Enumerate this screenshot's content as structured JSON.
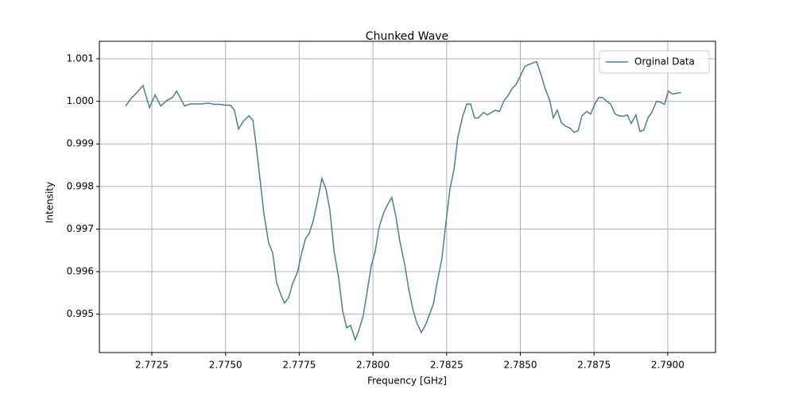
{
  "chart_data": {
    "type": "line",
    "title": "Chunked Wave",
    "x_label": "Frequency [GHz]",
    "y_label": "Intensity",
    "xlim": [
      2.77072,
      2.79162
    ],
    "ylim": [
      0.9941,
      1.00141
    ],
    "xticks": [
      2.7725,
      {
        "value": 2.775,
        "label": "2.7750"
      },
      2.7775,
      {
        "value": 2.78,
        "label": "2.7800"
      },
      2.7825,
      {
        "value": 2.785,
        "label": "2.7850"
      },
      2.7875,
      {
        "value": 2.79,
        "label": "2.7900"
      }
    ],
    "yticks": [
      0.995,
      0.996,
      0.997,
      0.998,
      0.999,
      {
        "value": 1,
        "label": "1.000"
      },
      1.001
    ],
    "grid": true,
    "legend": "upper right",
    "x": [
      2.77161,
      2.7718,
      2.77201,
      2.7722,
      2.77242,
      2.77261,
      2.7728,
      2.77301,
      2.7732,
      2.77334,
      2.77361,
      2.77382,
      2.77401,
      2.7742,
      2.77441,
      2.7746,
      2.77482,
      2.77501,
      2.77517,
      2.7753,
      2.77544,
      2.7756,
      2.77579,
      2.77593,
      2.77603,
      2.77617,
      2.7763,
      2.77646,
      2.7766,
      2.77673,
      2.77687,
      2.777,
      2.77714,
      2.77727,
      2.77744,
      2.77757,
      2.77771,
      2.77784,
      2.77797,
      2.77811,
      2.77827,
      2.77841,
      2.77854,
      2.77868,
      2.77884,
      2.77897,
      2.77911,
      2.77924,
      2.7794,
      2.77954,
      2.77967,
      2.77981,
      2.77994,
      2.78008,
      2.78021,
      2.78038,
      2.78051,
      2.78064,
      2.78078,
      2.78091,
      2.78108,
      2.78121,
      2.78135,
      2.78148,
      2.78164,
      2.78178,
      2.78191,
      2.78205,
      2.78218,
      2.78234,
      2.78248,
      2.78261,
      2.78275,
      2.78288,
      2.78305,
      2.78318,
      2.78331,
      2.78345,
      2.78358,
      2.78375,
      2.78388,
      2.78402,
      2.78415,
      2.78429,
      2.78445,
      2.78458,
      2.78472,
      2.78485,
      2.78499,
      2.78515,
      2.78528,
      2.78542,
      2.78555,
      2.78569,
      2.78585,
      2.78599,
      2.78612,
      2.78625,
      2.78639,
      2.78652,
      2.78669,
      2.78682,
      2.78696,
      2.78709,
      2.78725,
      2.78739,
      2.78752,
      2.78766,
      2.78779,
      2.78793,
      2.78806,
      2.78822,
      2.78836,
      2.78849,
      2.78863,
      2.78876,
      2.78892,
      2.78906,
      2.78919,
      2.78933,
      2.78946,
      2.78962,
      2.78975,
      2.78989,
      2.79002,
      2.79016,
      2.79032,
      2.79045
    ],
    "series": [
      {
        "name": "Orginal Data",
        "color": "#4d7f96",
        "values": [
          0.99989,
          1.00007,
          1.00022,
          1.00037,
          0.99985,
          1.00015,
          0.99989,
          1.00002,
          1.00009,
          1.00024,
          0.99989,
          0.99994,
          0.99994,
          0.99994,
          0.99996,
          0.99993,
          0.99993,
          0.99991,
          0.99991,
          0.99979,
          0.99935,
          0.99953,
          0.99966,
          0.99955,
          0.99901,
          0.99817,
          0.99737,
          0.99668,
          0.99644,
          0.99575,
          0.99547,
          0.99526,
          0.99539,
          0.99571,
          0.99599,
          0.9964,
          0.99677,
          0.9969,
          0.99718,
          0.99763,
          0.99819,
          0.99793,
          0.99744,
          0.99649,
          0.99584,
          0.99509,
          0.99468,
          0.99474,
          0.9944,
          0.99466,
          0.99496,
          0.99556,
          0.99612,
          0.99649,
          0.99705,
          0.99741,
          0.99759,
          0.99774,
          0.99729,
          0.99672,
          0.99616,
          0.9956,
          0.99513,
          0.99481,
          0.99457,
          0.99474,
          0.99498,
          0.99524,
          0.99575,
          0.99631,
          0.99718,
          0.99793,
          0.9984,
          0.99916,
          0.99966,
          0.99993,
          0.99994,
          0.99961,
          0.99961,
          0.99974,
          0.99968,
          0.99974,
          0.99979,
          0.99976,
          1.00002,
          1.00013,
          1.0003,
          1.00039,
          1.00058,
          1.00082,
          1.00086,
          1.0009,
          1.00093,
          1.00065,
          1.00028,
          1.00004,
          0.99961,
          0.99979,
          0.9995,
          0.99942,
          0.99937,
          0.99927,
          0.99931,
          0.99966,
          0.99976,
          0.9997,
          0.99993,
          1.00009,
          1.00009,
          1.0,
          0.99994,
          0.9997,
          0.99966,
          0.99965,
          0.99968,
          0.99948,
          0.99968,
          0.99929,
          0.99933,
          0.99961,
          0.99974,
          1.0,
          0.99998,
          0.99993,
          1.00024,
          1.00017,
          1.00019,
          1.00021
        ]
      }
    ]
  }
}
